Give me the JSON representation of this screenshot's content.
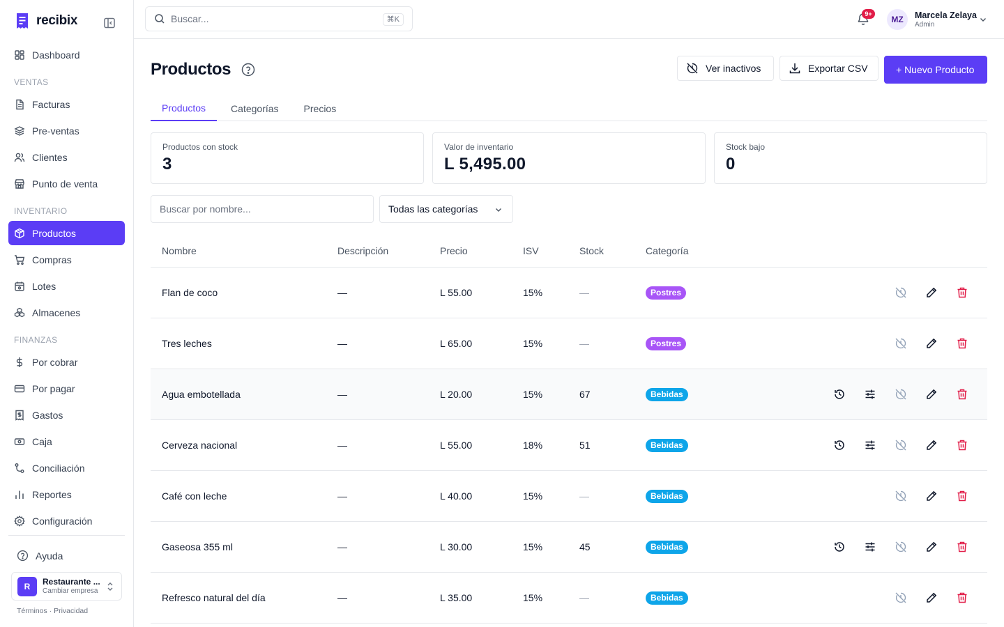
{
  "brand": {
    "name": "recibix"
  },
  "sidebar": {
    "top_items": [
      {
        "label": "Dashboard"
      }
    ],
    "sections": [
      {
        "title": "VENTAS",
        "items": [
          {
            "label": "Facturas"
          },
          {
            "label": "Pre-ventas"
          },
          {
            "label": "Clientes"
          },
          {
            "label": "Punto de venta"
          }
        ]
      },
      {
        "title": "INVENTARIO",
        "items": [
          {
            "label": "Productos"
          },
          {
            "label": "Compras"
          },
          {
            "label": "Lotes"
          },
          {
            "label": "Almacenes"
          }
        ]
      },
      {
        "title": "FINANZAS",
        "items": [
          {
            "label": "Por cobrar"
          },
          {
            "label": "Por pagar"
          },
          {
            "label": "Gastos"
          },
          {
            "label": "Caja"
          },
          {
            "label": "Conciliación"
          },
          {
            "label": "Reportes"
          },
          {
            "label": "Configuración"
          }
        ]
      }
    ],
    "active_item": "Productos",
    "help_label": "Ayuda",
    "company": {
      "initial": "R",
      "name": "Restaurante ...",
      "sub": "Cambiar empresa"
    },
    "legal": "Términos · Privacidad"
  },
  "topbar": {
    "search_placeholder": "Buscar...",
    "search_shortcut": "⌘K",
    "notifications_badge": "9+",
    "user": {
      "initials": "MZ",
      "name": "Marcela Zelaya",
      "role": "Admin"
    }
  },
  "page": {
    "title": "Productos",
    "buttons": {
      "inactive": "Ver inactivos",
      "export": "Exportar CSV",
      "new": "+ Nuevo Producto"
    },
    "tabs": [
      {
        "label": "Productos"
      },
      {
        "label": "Categorías"
      },
      {
        "label": "Precios"
      }
    ],
    "active_tab": "Productos",
    "stats": [
      {
        "label": "Productos con stock",
        "value": "3"
      },
      {
        "label": "Valor de inventario",
        "value": "L 5,495.00"
      },
      {
        "label": "Stock bajo",
        "value": "0"
      }
    ],
    "filters": {
      "name_placeholder": "Buscar por nombre...",
      "category_value": "Todas las categorías"
    },
    "colors": {
      "accent": "#5b3df5",
      "postres": "#a855f7",
      "bebidas": "#0ea5e9",
      "delete": "#e11d48"
    }
  },
  "table": {
    "columns": [
      "Nombre",
      "Descripción",
      "Precio",
      "ISV",
      "Stock",
      "Categoría"
    ],
    "rows": [
      {
        "name": "Flan de coco",
        "description": "—",
        "price": "L 55.00",
        "isv": "15%",
        "stock": "—",
        "category": "Postres",
        "tracked": false
      },
      {
        "name": "Tres leches",
        "description": "—",
        "price": "L 65.00",
        "isv": "15%",
        "stock": "—",
        "category": "Postres",
        "tracked": false
      },
      {
        "name": "Agua embotellada",
        "description": "—",
        "price": "L 20.00",
        "isv": "15%",
        "stock": "67",
        "category": "Bebidas",
        "tracked": true
      },
      {
        "name": "Cerveza nacional",
        "description": "—",
        "price": "L 55.00",
        "isv": "18%",
        "stock": "51",
        "category": "Bebidas",
        "tracked": true
      },
      {
        "name": "Café con leche",
        "description": "—",
        "price": "L 40.00",
        "isv": "15%",
        "stock": "—",
        "category": "Bebidas",
        "tracked": false
      },
      {
        "name": "Gaseosa 355 ml",
        "description": "—",
        "price": "L 30.00",
        "isv": "15%",
        "stock": "45",
        "category": "Bebidas",
        "tracked": true
      },
      {
        "name": "Refresco natural del día",
        "description": "—",
        "price": "L 35.00",
        "isv": "15%",
        "stock": "—",
        "category": "Bebidas",
        "tracked": false
      }
    ],
    "row_actions": [
      "history-icon",
      "adjust-stock-icon",
      "deactivate-icon",
      "edit-icon",
      "delete-icon"
    ]
  }
}
